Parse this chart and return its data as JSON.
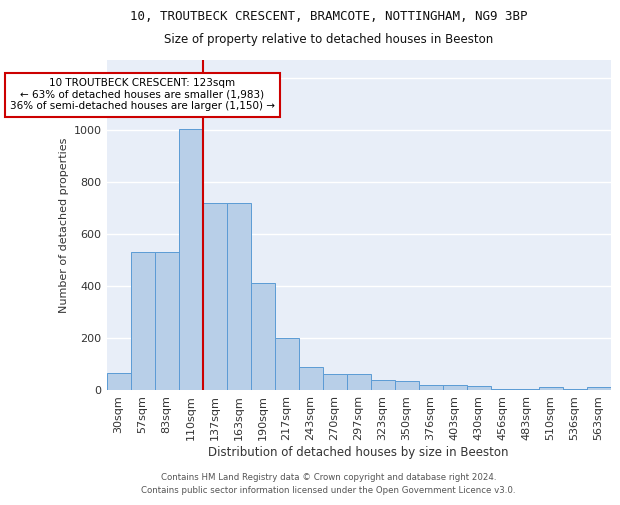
{
  "title1": "10, TROUTBECK CRESCENT, BRAMCOTE, NOTTINGHAM, NG9 3BP",
  "title2": "Size of property relative to detached houses in Beeston",
  "xlabel": "Distribution of detached houses by size in Beeston",
  "ylabel": "Number of detached properties",
  "categories": [
    "30sqm",
    "57sqm",
    "83sqm",
    "110sqm",
    "137sqm",
    "163sqm",
    "190sqm",
    "217sqm",
    "243sqm",
    "270sqm",
    "297sqm",
    "323sqm",
    "350sqm",
    "376sqm",
    "403sqm",
    "430sqm",
    "456sqm",
    "483sqm",
    "510sqm",
    "536sqm",
    "563sqm"
  ],
  "values": [
    67,
    530,
    530,
    1005,
    720,
    720,
    410,
    200,
    88,
    63,
    63,
    40,
    33,
    20,
    20,
    17,
    2,
    2,
    10,
    2,
    13
  ],
  "bar_color": "#b8cfe8",
  "bar_edge_color": "#5b9bd5",
  "background_color": "#e8eef8",
  "grid_color": "#ffffff",
  "annotation_line1": "10 TROUTBECK CRESCENT: 123sqm",
  "annotation_line2": "← 63% of detached houses are smaller (1,983)",
  "annotation_line3": "36% of semi-detached houses are larger (1,150) →",
  "annotation_box_edge": "#cc0000",
  "vline_x": 3.5,
  "vline_color": "#cc0000",
  "ylim_max": 1270,
  "yticks": [
    0,
    200,
    400,
    600,
    800,
    1000,
    1200
  ],
  "footer1": "Contains HM Land Registry data © Crown copyright and database right 2024.",
  "footer2": "Contains public sector information licensed under the Open Government Licence v3.0."
}
